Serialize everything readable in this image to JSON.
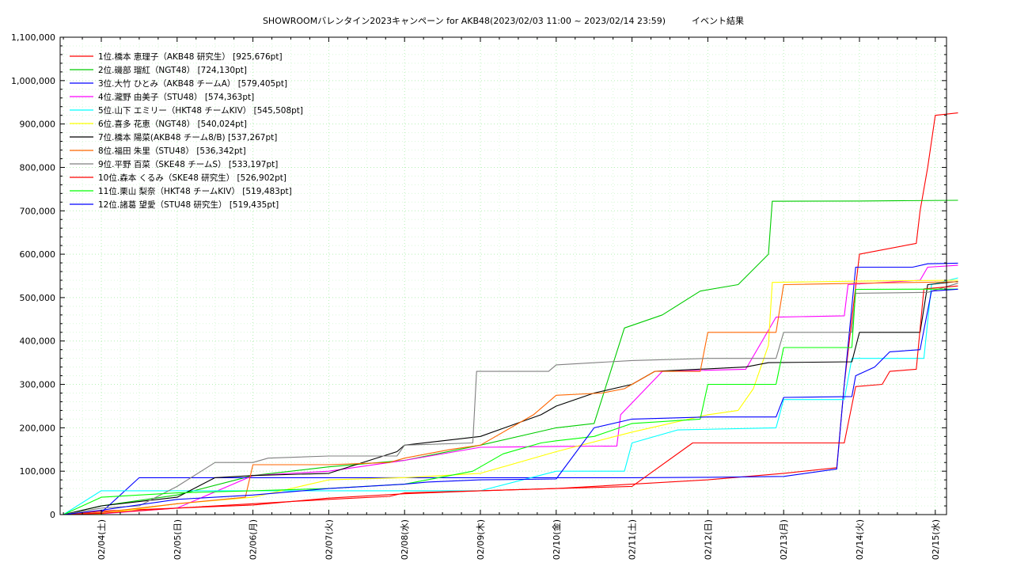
{
  "chart_data": {
    "type": "line",
    "title": "SHOWROOMバレンタイン2023キャンペーン for AKB48(2023/02/03 11:00 ~ 2023/02/14 23:59)　　　イベント結果",
    "xlabel": "",
    "ylabel": "",
    "ylim": [
      0,
      1100000
    ],
    "xlim": [
      0,
      11.5
    ],
    "yticks": [
      "0",
      "100,000",
      "200,000",
      "300,000",
      "400,000",
      "500,000",
      "600,000",
      "700,000",
      "800,000",
      "900,000",
      "1,000,000",
      "1,100,000"
    ],
    "xticks": [
      "02/04(土)",
      "02/05(日)",
      "02/06(月)",
      "02/07(火)",
      "02/08(水)",
      "02/09(木)",
      "02/10(金)",
      "02/11(土)",
      "02/12(日)",
      "02/13(月)",
      "02/14(火)",
      "02/15(水)"
    ],
    "grid": true,
    "legend_position": "top-left",
    "series": [
      {
        "name": "1位.橋本 恵理子（AKB48 研究生） [925,676pt]",
        "color": "#ff0000",
        "points": [
          [
            -0.5,
            0
          ],
          [
            0,
            8000
          ],
          [
            1,
            15000
          ],
          [
            2,
            22000
          ],
          [
            3,
            38000
          ],
          [
            4,
            48000
          ],
          [
            5,
            55000
          ],
          [
            6,
            60000
          ],
          [
            7,
            70000
          ],
          [
            8,
            80000
          ],
          [
            9,
            95000
          ],
          [
            9.7,
            108000
          ],
          [
            9.8,
            300000
          ],
          [
            10.0,
            600000
          ],
          [
            10.75,
            625000
          ],
          [
            10.8,
            700000
          ],
          [
            10.9,
            800000
          ],
          [
            11.0,
            920000
          ],
          [
            11.3,
            925676
          ]
        ]
      },
      {
        "name": "2位.磯部 瑠紅（NGT48） [724,130pt]",
        "color": "#00cc00",
        "points": [
          [
            -0.5,
            0
          ],
          [
            0,
            20000
          ],
          [
            1,
            45000
          ],
          [
            2,
            90000
          ],
          [
            3,
            110000
          ],
          [
            4,
            125000
          ],
          [
            5,
            160000
          ],
          [
            6,
            200000
          ],
          [
            6.5,
            210000
          ],
          [
            6.9,
            430000
          ],
          [
            7.4,
            460000
          ],
          [
            7.9,
            515000
          ],
          [
            8.4,
            530000
          ],
          [
            8.8,
            600000
          ],
          [
            8.85,
            722000
          ],
          [
            10,
            722500
          ],
          [
            11.3,
            724130
          ]
        ]
      },
      {
        "name": "3位.大竹 ひとみ（AKB48 チームA） [579,405pt]",
        "color": "#0000ff",
        "points": [
          [
            -0.5,
            0
          ],
          [
            0,
            5000
          ],
          [
            0.5,
            85000
          ],
          [
            1,
            85000
          ],
          [
            2,
            85000
          ],
          [
            3,
            85000
          ],
          [
            4,
            85000
          ],
          [
            5,
            85000
          ],
          [
            6,
            85000
          ],
          [
            7,
            85000
          ],
          [
            8,
            86000
          ],
          [
            9,
            88000
          ],
          [
            9.7,
            105000
          ],
          [
            9.8,
            300000
          ],
          [
            9.95,
            570000
          ],
          [
            10.7,
            570000
          ],
          [
            10.9,
            578000
          ],
          [
            11.3,
            579405
          ]
        ]
      },
      {
        "name": "4位.瀧野 由美子（STU48） [574,363pt]",
        "color": "#ff00ff",
        "points": [
          [
            -0.5,
            0
          ],
          [
            0,
            2000
          ],
          [
            1,
            15000
          ],
          [
            2,
            90000
          ],
          [
            3,
            100000
          ],
          [
            4,
            125000
          ],
          [
            5,
            155000
          ],
          [
            6,
            157000
          ],
          [
            6.8,
            158000
          ],
          [
            6.85,
            230000
          ],
          [
            7.4,
            330000
          ],
          [
            8.5,
            335000
          ],
          [
            8.9,
            455000
          ],
          [
            9.8,
            458000
          ],
          [
            9.85,
            530000
          ],
          [
            10.8,
            540000
          ],
          [
            10.9,
            570000
          ],
          [
            11.3,
            574363
          ]
        ]
      },
      {
        "name": "5位.山下 エミリー（HKT48 チームKIV） [545,508pt]",
        "color": "#00ffff",
        "points": [
          [
            -0.5,
            0
          ],
          [
            0,
            55000
          ],
          [
            1,
            55000
          ],
          [
            2,
            55000
          ],
          [
            3,
            55000
          ],
          [
            4,
            55000
          ],
          [
            5,
            55000
          ],
          [
            6,
            100000
          ],
          [
            6.9,
            100000
          ],
          [
            7.0,
            165000
          ],
          [
            7.6,
            195000
          ],
          [
            8.9,
            200000
          ],
          [
            9.0,
            265000
          ],
          [
            9.8,
            265000
          ],
          [
            9.9,
            360000
          ],
          [
            10.85,
            360000
          ],
          [
            10.95,
            530000
          ],
          [
            11.3,
            545508
          ]
        ]
      },
      {
        "name": "6位.喜多 花恵（NGT48） [540,024pt]",
        "color": "#ffff00",
        "points": [
          [
            -0.5,
            0
          ],
          [
            0,
            2000
          ],
          [
            1,
            25000
          ],
          [
            2,
            40000
          ],
          [
            3,
            80000
          ],
          [
            4,
            85000
          ],
          [
            5,
            95000
          ],
          [
            6,
            145000
          ],
          [
            7,
            190000
          ],
          [
            8,
            230000
          ],
          [
            8.4,
            240000
          ],
          [
            8.6,
            290000
          ],
          [
            8.8,
            390000
          ],
          [
            8.85,
            535000
          ],
          [
            10,
            538000
          ],
          [
            11.3,
            540024
          ]
        ]
      },
      {
        "name": "7位.橋本 陽菜(AKB48 チーム8/B) [537,267pt]",
        "color": "#000000",
        "points": [
          [
            -0.5,
            0
          ],
          [
            0,
            20000
          ],
          [
            1,
            40000
          ],
          [
            1.5,
            85000
          ],
          [
            2,
            90000
          ],
          [
            3,
            95000
          ],
          [
            3.9,
            145000
          ],
          [
            4,
            160000
          ],
          [
            5,
            180000
          ],
          [
            5.8,
            230000
          ],
          [
            6,
            250000
          ],
          [
            6.5,
            280000
          ],
          [
            7,
            300000
          ],
          [
            7.3,
            330000
          ],
          [
            8.5,
            340000
          ],
          [
            8.8,
            350000
          ],
          [
            9.9,
            352000
          ],
          [
            10,
            420000
          ],
          [
            10.8,
            420000
          ],
          [
            10.9,
            530000
          ],
          [
            11.3,
            537267
          ]
        ]
      },
      {
        "name": "8位.福田 朱里（STU48） [536,342pt]",
        "color": "#ff6600",
        "points": [
          [
            -0.5,
            0
          ],
          [
            0,
            5000
          ],
          [
            1,
            25000
          ],
          [
            1.9,
            40000
          ],
          [
            2,
            115000
          ],
          [
            3,
            115000
          ],
          [
            3.8,
            120000
          ],
          [
            4,
            130000
          ],
          [
            4.6,
            150000
          ],
          [
            5,
            160000
          ],
          [
            5.7,
            230000
          ],
          [
            6,
            275000
          ],
          [
            6.6,
            280000
          ],
          [
            6.9,
            290000
          ],
          [
            7.3,
            330000
          ],
          [
            7.9,
            330000
          ],
          [
            8.0,
            420000
          ],
          [
            8.9,
            420000
          ],
          [
            9.0,
            530000
          ],
          [
            10,
            533000
          ],
          [
            11.3,
            536342
          ]
        ]
      },
      {
        "name": "9位.平野 百菜（SKE48 チームS） [533,197pt]",
        "color": "#808080",
        "points": [
          [
            -0.5,
            0
          ],
          [
            0,
            15000
          ],
          [
            0.5,
            20000
          ],
          [
            1,
            65000
          ],
          [
            1.5,
            120000
          ],
          [
            2,
            120000
          ],
          [
            2.2,
            130000
          ],
          [
            3,
            135000
          ],
          [
            3.9,
            135000
          ],
          [
            4,
            160000
          ],
          [
            4.9,
            165000
          ],
          [
            4.95,
            330000
          ],
          [
            5.9,
            330000
          ],
          [
            6,
            345000
          ],
          [
            7,
            355000
          ],
          [
            8,
            360000
          ],
          [
            8.9,
            360000
          ],
          [
            9,
            420000
          ],
          [
            9.9,
            420000
          ],
          [
            9.95,
            510000
          ],
          [
            10.9,
            512000
          ],
          [
            11.3,
            533197
          ]
        ]
      },
      {
        "name": "10位.森本 くるみ（SKE48 研究生） [526,902pt]",
        "color": "#ff0000",
        "points": [
          [
            -0.5,
            0
          ],
          [
            0,
            3000
          ],
          [
            1,
            15000
          ],
          [
            2,
            25000
          ],
          [
            3,
            35000
          ],
          [
            3.8,
            42000
          ],
          [
            4,
            50000
          ],
          [
            5,
            55000
          ],
          [
            6,
            60000
          ],
          [
            7,
            65000
          ],
          [
            7.8,
            165000
          ],
          [
            8.5,
            165000
          ],
          [
            9.8,
            165000
          ],
          [
            9.95,
            295000
          ],
          [
            10.3,
            300000
          ],
          [
            10.4,
            330000
          ],
          [
            10.75,
            335000
          ],
          [
            10.85,
            520000
          ],
          [
            11.3,
            526902
          ]
        ]
      },
      {
        "name": "11位.栗山 梨奈（HKT48 チームKIV） [519,483pt]",
        "color": "#00ff00",
        "points": [
          [
            -0.5,
            0
          ],
          [
            0,
            40000
          ],
          [
            1,
            50000
          ],
          [
            2,
            55000
          ],
          [
            3,
            60000
          ],
          [
            4,
            70000
          ],
          [
            4.9,
            100000
          ],
          [
            5.3,
            140000
          ],
          [
            5.8,
            165000
          ],
          [
            6,
            170000
          ],
          [
            6.5,
            180000
          ],
          [
            7,
            210000
          ],
          [
            7.9,
            220000
          ],
          [
            8,
            300000
          ],
          [
            8.9,
            300000
          ],
          [
            9,
            385000
          ],
          [
            9.9,
            385000
          ],
          [
            9.95,
            519000
          ],
          [
            11.3,
            519483
          ]
        ]
      },
      {
        "name": "12位.諸葛 望愛（STU48 研究生） [519,435pt]",
        "color": "#0000ff",
        "points": [
          [
            -0.5,
            0
          ],
          [
            0,
            10000
          ],
          [
            1,
            35000
          ],
          [
            2,
            45000
          ],
          [
            3,
            60000
          ],
          [
            4,
            70000
          ],
          [
            4.3,
            75000
          ],
          [
            5,
            80000
          ],
          [
            6,
            82000
          ],
          [
            6.5,
            200000
          ],
          [
            7,
            220000
          ],
          [
            8,
            225000
          ],
          [
            8.9,
            225000
          ],
          [
            9,
            270000
          ],
          [
            9.9,
            272000
          ],
          [
            9.95,
            320000
          ],
          [
            10.2,
            340000
          ],
          [
            10.4,
            375000
          ],
          [
            10.8,
            380000
          ],
          [
            10.95,
            515000
          ],
          [
            11.3,
            519435
          ]
        ]
      }
    ]
  }
}
